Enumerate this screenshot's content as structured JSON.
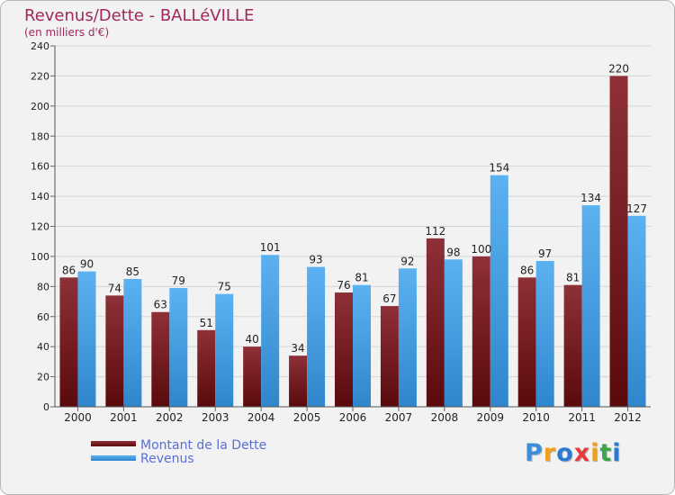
{
  "chart_data": {
    "type": "bar",
    "title": "Revenus/Dette - BALLéVILLE",
    "subtitle": "(en milliers d'€)",
    "categories": [
      "2000",
      "2001",
      "2002",
      "2003",
      "2004",
      "2005",
      "2006",
      "2007",
      "2008",
      "2009",
      "2010",
      "2011",
      "2012"
    ],
    "series": [
      {
        "name": "Montant de la Dette",
        "color": "#7a1e22",
        "values": [
          86,
          74,
          63,
          51,
          40,
          34,
          76,
          67,
          112,
          100,
          86,
          81,
          220
        ]
      },
      {
        "name": "Revenus",
        "color": "#4aa3e8",
        "values": [
          90,
          85,
          79,
          75,
          101,
          93,
          81,
          92,
          98,
          154,
          97,
          134,
          127
        ]
      }
    ],
    "ylim": [
      0,
      240
    ],
    "yticks": [
      0,
      20,
      40,
      60,
      80,
      100,
      120,
      140,
      160,
      180,
      200,
      220,
      240
    ],
    "grid": true,
    "legend_position": "bottom-left"
  },
  "logo": {
    "letters": [
      "P",
      "r",
      "o",
      "x",
      "i",
      "t",
      "i"
    ],
    "colors": [
      "#3a8fd8",
      "#f0a020",
      "#2a7ad0",
      "#e83a3a",
      "#f0a020",
      "#3aa84a",
      "#2a7ad0"
    ]
  }
}
